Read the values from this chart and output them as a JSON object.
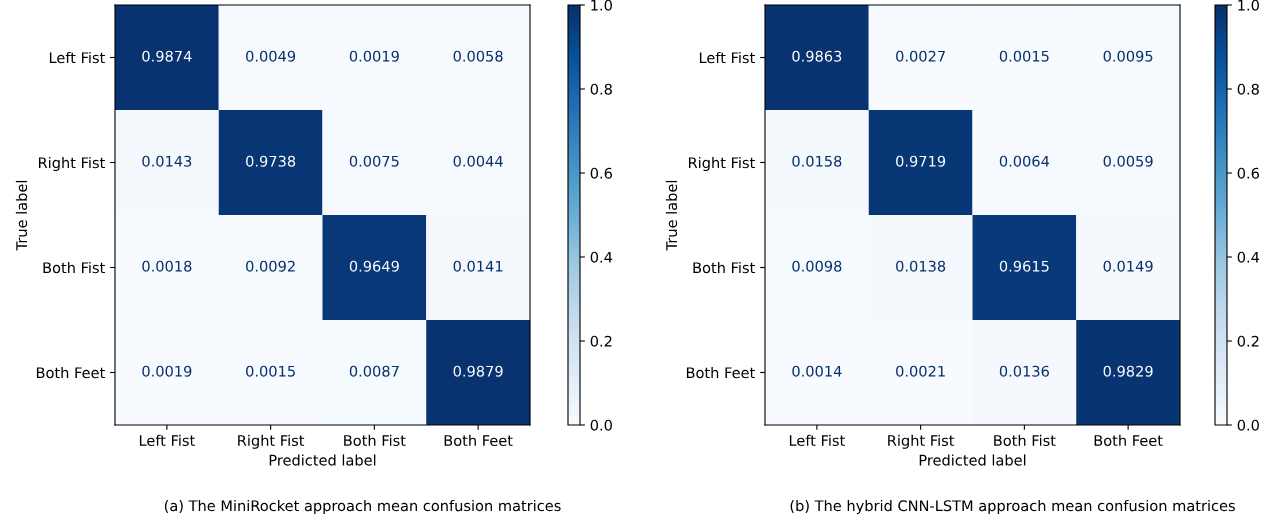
{
  "chart_data": [
    {
      "type": "heatmap",
      "xlabel": "Predicted label",
      "ylabel": "True label",
      "categories": [
        "Left Fist",
        "Right Fist",
        "Both Fist",
        "Both Feet"
      ],
      "y_categories": [
        "Left Fist",
        "Right Fist",
        "Both Fist",
        "Both Feet"
      ],
      "cells": [
        [
          0.9874,
          0.0049,
          0.0019,
          0.0058
        ],
        [
          0.0143,
          0.9738,
          0.0075,
          0.0044
        ],
        [
          0.0018,
          0.0092,
          0.9649,
          0.0141
        ],
        [
          0.0019,
          0.0015,
          0.0087,
          0.9879
        ]
      ],
      "data_labels": true,
      "clim": [
        0,
        1
      ],
      "cticks": [
        {
          "value": 0,
          "label": "0.0"
        },
        {
          "value": 0.2,
          "label": "0.2"
        },
        {
          "value": 0.4,
          "label": "0.4"
        },
        {
          "value": 0.6,
          "label": "0.6"
        },
        {
          "value": 0.8,
          "label": "0.8"
        },
        {
          "value": 1,
          "label": "1.0"
        }
      ],
      "annotations": [
        "(a) The MiniRocket approach mean confusion matrices"
      ]
    },
    {
      "type": "heatmap",
      "xlabel": "Predicted label",
      "ylabel": "True label",
      "categories": [
        "Left Fist",
        "Right Fist",
        "Both Fist",
        "Both Feet"
      ],
      "y_categories": [
        "Left Fist",
        "Right Fist",
        "Both Fist",
        "Both Feet"
      ],
      "cells": [
        [
          0.9863,
          0.0027,
          0.0015,
          0.0095
        ],
        [
          0.0158,
          0.9719,
          0.0064,
          0.0059
        ],
        [
          0.0098,
          0.0138,
          0.9615,
          0.0149
        ],
        [
          0.0014,
          0.0021,
          0.0136,
          0.9829
        ]
      ],
      "data_labels": true,
      "clim": [
        0,
        1
      ],
      "cticks": [
        {
          "value": 0,
          "label": "0.0"
        },
        {
          "value": 0.2,
          "label": "0.2"
        },
        {
          "value": 0.4,
          "label": "0.4"
        },
        {
          "value": 0.6,
          "label": "0.6"
        },
        {
          "value": 0.8,
          "label": "0.8"
        },
        {
          "value": 1,
          "label": "1.0"
        }
      ],
      "annotations": [
        "(b) The hybrid CNN-LSTM approach mean confusion matrices"
      ]
    }
  ]
}
